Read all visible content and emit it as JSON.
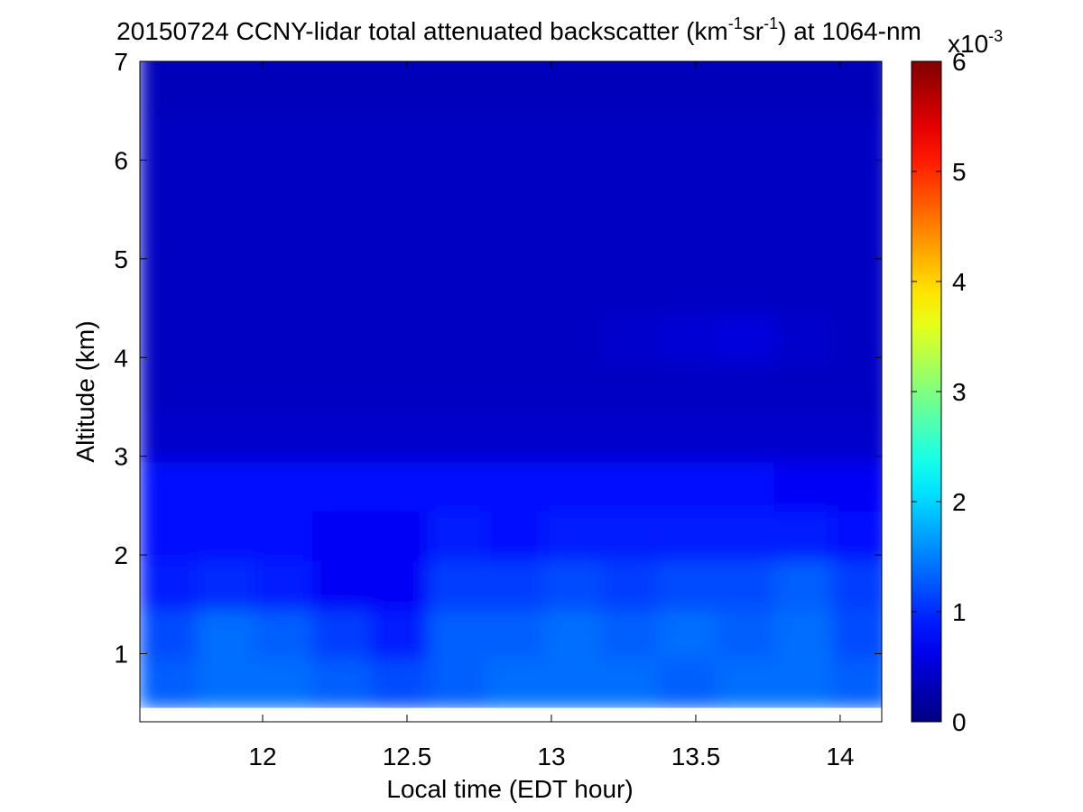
{
  "chart_data": {
    "type": "heatmap",
    "title": [
      "20150724 CCNY-lidar total attenuated backscatter (km",
      "-1",
      "sr",
      "-1",
      ") at 1064-nm"
    ],
    "x_label": "Local time (EDT hour)",
    "y_label": "Altitude (km)",
    "xlim": [
      11.575,
      14.144
    ],
    "xticks": [
      12,
      12.5,
      13,
      13.5,
      14
    ],
    "ylim": [
      0.31,
      7
    ],
    "yticks": [
      1,
      2,
      3,
      4,
      5,
      6,
      7
    ],
    "x": [
      11.675,
      11.875,
      12.075,
      12.275,
      12.475,
      12.675,
      12.875,
      13.075,
      13.275,
      13.475,
      13.675,
      13.875,
      14.075
    ],
    "y": [
      0.7,
      1.2,
      1.7,
      2.2,
      2.7,
      3.2,
      3.7,
      4.2,
      4.7,
      5.2,
      5.7,
      6.2,
      6.7,
      7.2
    ],
    "z": [
      [
        1.3,
        1.4,
        1.4,
        1.3,
        1.2,
        1.3,
        1.4,
        1.4,
        1.4,
        1.3,
        1.4,
        1.4,
        1.3
      ],
      [
        1.2,
        1.4,
        1.3,
        1.1,
        0.9,
        1.3,
        1.3,
        1.4,
        1.3,
        1.4,
        1.3,
        1.4,
        1.2
      ],
      [
        0.9,
        1.0,
        0.9,
        0.7,
        0.7,
        1.1,
        1.1,
        1.2,
        1.1,
        1.2,
        1.2,
        1.3,
        1.1
      ],
      [
        0.8,
        0.8,
        0.8,
        0.7,
        0.7,
        0.9,
        0.8,
        0.9,
        0.9,
        0.9,
        0.9,
        0.9,
        0.8
      ],
      [
        0.8,
        0.8,
        0.8,
        0.8,
        0.8,
        0.8,
        0.8,
        0.8,
        0.8,
        0.8,
        0.8,
        0.7,
        0.7
      ],
      [
        0.45,
        0.45,
        0.45,
        0.45,
        0.45,
        0.45,
        0.45,
        0.45,
        0.45,
        0.45,
        0.45,
        0.45,
        0.45
      ],
      [
        0.4,
        0.4,
        0.4,
        0.4,
        0.4,
        0.4,
        0.4,
        0.4,
        0.4,
        0.4,
        0.4,
        0.4,
        0.4
      ],
      [
        0.4,
        0.4,
        0.4,
        0.4,
        0.4,
        0.4,
        0.4,
        0.4,
        0.45,
        0.5,
        0.55,
        0.45,
        0.4
      ],
      [
        0.4,
        0.4,
        0.4,
        0.4,
        0.4,
        0.4,
        0.4,
        0.4,
        0.4,
        0.4,
        0.4,
        0.4,
        0.4
      ],
      [
        0.4,
        0.4,
        0.4,
        0.4,
        0.4,
        0.4,
        0.4,
        0.4,
        0.4,
        0.4,
        0.4,
        0.4,
        0.4
      ],
      [
        0.4,
        0.4,
        0.4,
        0.4,
        0.4,
        0.4,
        0.4,
        0.4,
        0.4,
        0.4,
        0.4,
        0.4,
        0.4
      ],
      [
        0.4,
        0.4,
        0.4,
        0.4,
        0.4,
        0.4,
        0.4,
        0.4,
        0.4,
        0.4,
        0.4,
        0.4,
        0.4
      ],
      [
        0.35,
        0.35,
        0.35,
        0.35,
        0.35,
        0.35,
        0.35,
        0.35,
        0.35,
        0.35,
        0.35,
        0.35,
        0.35
      ],
      [
        0.35,
        0.35,
        0.35,
        0.35,
        0.35,
        0.35,
        0.35,
        0.35,
        0.35,
        0.35,
        0.35,
        0.35,
        0.35
      ]
    ],
    "colormap": "jet",
    "clim": [
      0,
      6
    ],
    "cticks": [
      0,
      1,
      2,
      3,
      4,
      5,
      6
    ],
    "colorbar_scale": {
      "base": "x10",
      "exponent": "-3"
    }
  }
}
